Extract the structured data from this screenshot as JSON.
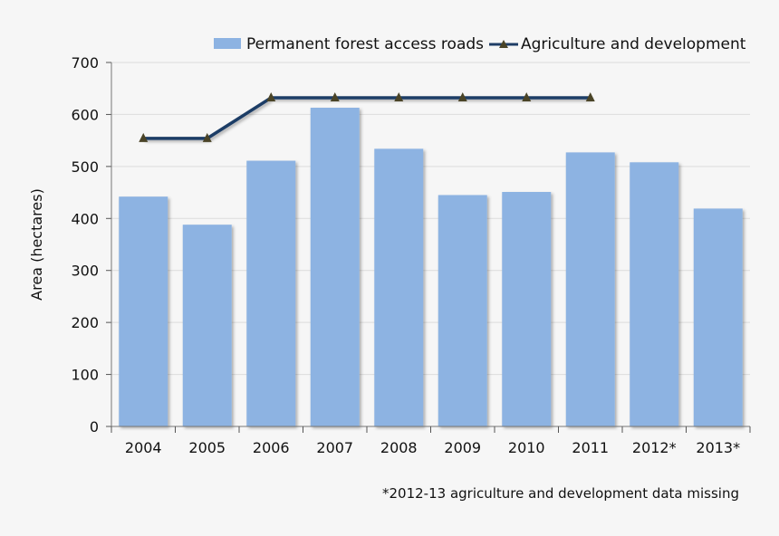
{
  "chart_data": {
    "type": "bar",
    "title": "",
    "xlabel": "",
    "ylabel": "Area (hectares)",
    "ylim": [
      0,
      700
    ],
    "yticks": [
      0,
      100,
      200,
      300,
      400,
      500,
      600,
      700
    ],
    "grid": true,
    "legend_position": "top-right",
    "categories": [
      "2004",
      "2005",
      "2006",
      "2007",
      "2008",
      "2009",
      "2010",
      "2011",
      "2012*",
      "2013*"
    ],
    "series": [
      {
        "name": "Permanent forest access roads",
        "type": "bar",
        "color": "#8db3e2",
        "values": [
          442,
          388,
          511,
          613,
          534,
          445,
          451,
          527,
          508,
          419
        ]
      },
      {
        "name": "Agriculture and development",
        "type": "line",
        "color": "#1f3d66",
        "marker_color": "#4a4427",
        "values": [
          554,
          554,
          632,
          632,
          632,
          632,
          632,
          632,
          null,
          null
        ]
      }
    ],
    "footnote": "*2012-13 agriculture and development data missing"
  }
}
